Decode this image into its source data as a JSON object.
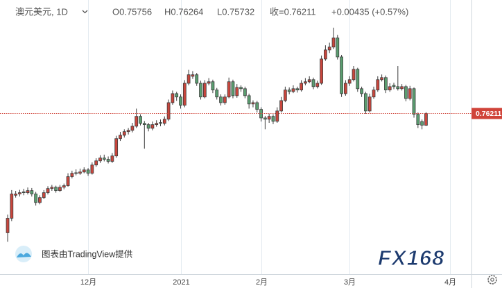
{
  "chart_data": {
    "type": "candlestick",
    "title": "澳元美元, 1D",
    "header_values": [
      "O0.75756",
      "H0.76264",
      "L0.75732",
      "收=0.76211",
      "+0.00435 (+0.57%)"
    ],
    "attribution": "图表由TradingView提供",
    "watermark": "FX168",
    "up_color": "#c9463d",
    "down_color": "#5a9e70",
    "price_line_color": "#d0443a",
    "grid": true,
    "xlim": [
      -1.9,
      115.3
    ],
    "xticks": [
      {
        "value": 20,
        "label": "12月"
      },
      {
        "value": 43,
        "label": "2021"
      },
      {
        "value": 63,
        "label": "2月"
      },
      {
        "value": 85,
        "label": "3月"
      },
      {
        "value": 110,
        "label": "4月"
      }
    ],
    "ylim": [
      0.7,
      0.806
    ],
    "ohlc": [
      [
        0.716,
        0.723,
        0.7125,
        0.7216
      ],
      [
        0.7216,
        0.7325,
        0.7205,
        0.731
      ],
      [
        0.7305,
        0.7322,
        0.7296,
        0.731
      ],
      [
        0.731,
        0.7326,
        0.73,
        0.7315
      ],
      [
        0.7318,
        0.733,
        0.7305,
        0.7315
      ],
      [
        0.7315,
        0.7335,
        0.7308,
        0.7323
      ],
      [
        0.7323,
        0.7333,
        0.73,
        0.731
      ],
      [
        0.731,
        0.7318,
        0.7265,
        0.7277
      ],
      [
        0.7277,
        0.7305,
        0.727,
        0.7296
      ],
      [
        0.7296,
        0.7325,
        0.729,
        0.7315
      ],
      [
        0.7315,
        0.734,
        0.7308,
        0.7331
      ],
      [
        0.7331,
        0.7345,
        0.7322,
        0.7336
      ],
      [
        0.7336,
        0.7342,
        0.7315,
        0.7323
      ],
      [
        0.7323,
        0.7345,
        0.7318,
        0.7336
      ],
      [
        0.7336,
        0.735,
        0.7328,
        0.7342
      ],
      [
        0.7342,
        0.739,
        0.7338,
        0.7377
      ],
      [
        0.7377,
        0.74,
        0.737,
        0.739
      ],
      [
        0.7392,
        0.7405,
        0.7382,
        0.739
      ],
      [
        0.739,
        0.7408,
        0.7384,
        0.7395
      ],
      [
        0.7395,
        0.7413,
        0.739,
        0.7403
      ],
      [
        0.7403,
        0.741,
        0.738,
        0.739
      ],
      [
        0.739,
        0.7432,
        0.7385,
        0.7422
      ],
      [
        0.7422,
        0.7448,
        0.7415,
        0.7438
      ],
      [
        0.7438,
        0.746,
        0.743,
        0.7449
      ],
      [
        0.7449,
        0.7462,
        0.7436,
        0.7444
      ],
      [
        0.7444,
        0.7455,
        0.7428,
        0.7436
      ],
      [
        0.7436,
        0.7468,
        0.743,
        0.7457
      ],
      [
        0.7457,
        0.7535,
        0.745,
        0.7524
      ],
      [
        0.7524,
        0.755,
        0.7515,
        0.7537
      ],
      [
        0.7537,
        0.756,
        0.7528,
        0.7551
      ],
      [
        0.7551,
        0.7565,
        0.754,
        0.7556
      ],
      [
        0.7556,
        0.7585,
        0.7548,
        0.7572
      ],
      [
        0.7572,
        0.764,
        0.7565,
        0.761
      ],
      [
        0.761,
        0.7618,
        0.7575,
        0.7583
      ],
      [
        0.7583,
        0.7592,
        0.7485,
        0.7578
      ],
      [
        0.7578,
        0.7585,
        0.7552,
        0.7564
      ],
      [
        0.7564,
        0.759,
        0.7556,
        0.7578
      ],
      [
        0.7578,
        0.7595,
        0.757,
        0.7583
      ],
      [
        0.7586,
        0.7598,
        0.7572,
        0.7583
      ],
      [
        0.7583,
        0.761,
        0.7575,
        0.7599
      ],
      [
        0.7599,
        0.7675,
        0.7592,
        0.7663
      ],
      [
        0.7663,
        0.771,
        0.7655,
        0.7698
      ],
      [
        0.7698,
        0.7705,
        0.767,
        0.7685
      ],
      [
        0.7685,
        0.7695,
        0.764,
        0.7653
      ],
      [
        0.7653,
        0.775,
        0.7645,
        0.7738
      ],
      [
        0.7738,
        0.779,
        0.773,
        0.7771
      ],
      [
        0.7765,
        0.7785,
        0.7755,
        0.7771
      ],
      [
        0.7771,
        0.7778,
        0.7728,
        0.7738
      ],
      [
        0.7738,
        0.7748,
        0.7675,
        0.7685
      ],
      [
        0.7685,
        0.775,
        0.768,
        0.7738
      ],
      [
        0.7738,
        0.7758,
        0.773,
        0.7744
      ],
      [
        0.7744,
        0.7752,
        0.77,
        0.7712
      ],
      [
        0.7712,
        0.772,
        0.7675,
        0.7685
      ],
      [
        0.7685,
        0.7695,
        0.7652,
        0.7663
      ],
      [
        0.7663,
        0.7695,
        0.7655,
        0.7685
      ],
      [
        0.7685,
        0.776,
        0.768,
        0.7744
      ],
      [
        0.7744,
        0.7752,
        0.768,
        0.769
      ],
      [
        0.769,
        0.7735,
        0.7682,
        0.7722
      ],
      [
        0.7722,
        0.773,
        0.7705,
        0.7717
      ],
      [
        0.7717,
        0.7725,
        0.768,
        0.769
      ],
      [
        0.769,
        0.7698,
        0.764,
        0.7658
      ],
      [
        0.7658,
        0.7672,
        0.7645,
        0.7663
      ],
      [
        0.7663,
        0.767,
        0.7625,
        0.7637
      ],
      [
        0.7637,
        0.7645,
        0.759,
        0.7604
      ],
      [
        0.7604,
        0.7612,
        0.756,
        0.7599
      ],
      [
        0.7599,
        0.762,
        0.7585,
        0.761
      ],
      [
        0.761,
        0.7618,
        0.758,
        0.7591
      ],
      [
        0.7591,
        0.7645,
        0.7585,
        0.7631
      ],
      [
        0.7631,
        0.7685,
        0.7625,
        0.7671
      ],
      [
        0.7671,
        0.7725,
        0.7665,
        0.7712
      ],
      [
        0.7712,
        0.7722,
        0.7695,
        0.7706
      ],
      [
        0.7706,
        0.773,
        0.77,
        0.7717
      ],
      [
        0.7717,
        0.7725,
        0.7702,
        0.7712
      ],
      [
        0.7712,
        0.775,
        0.7706,
        0.7738
      ],
      [
        0.7738,
        0.7758,
        0.773,
        0.7744
      ],
      [
        0.7744,
        0.7765,
        0.7738,
        0.7752
      ],
      [
        0.7752,
        0.776,
        0.7715,
        0.7725
      ],
      [
        0.7725,
        0.7748,
        0.7718,
        0.7738
      ],
      [
        0.7738,
        0.7845,
        0.7732,
        0.7832
      ],
      [
        0.7832,
        0.7885,
        0.7825,
        0.7867
      ],
      [
        0.7867,
        0.7895,
        0.7855,
        0.7878
      ],
      [
        0.7878,
        0.7953,
        0.787,
        0.7913
      ],
      [
        0.7913,
        0.7925,
        0.783,
        0.784
      ],
      [
        0.784,
        0.7848,
        0.7685,
        0.7698
      ],
      [
        0.7698,
        0.775,
        0.769,
        0.7738
      ],
      [
        0.7738,
        0.7765,
        0.7728,
        0.7752
      ],
      [
        0.7752,
        0.7805,
        0.7745,
        0.7792
      ],
      [
        0.7792,
        0.7798,
        0.7705,
        0.7717
      ],
      [
        0.7717,
        0.7725,
        0.7685,
        0.7698
      ],
      [
        0.7698,
        0.7705,
        0.762,
        0.7631
      ],
      [
        0.7631,
        0.7698,
        0.7625,
        0.7685
      ],
      [
        0.7685,
        0.7725,
        0.7678,
        0.7712
      ],
      [
        0.7712,
        0.7765,
        0.7705,
        0.7752
      ],
      [
        0.7752,
        0.7772,
        0.7745,
        0.776
      ],
      [
        0.776,
        0.7768,
        0.77,
        0.7712
      ],
      [
        0.7712,
        0.7738,
        0.7705,
        0.7725
      ],
      [
        0.773,
        0.774,
        0.7715,
        0.7725
      ],
      [
        0.7725,
        0.7805,
        0.771,
        0.7717
      ],
      [
        0.7717,
        0.7735,
        0.771,
        0.7725
      ],
      [
        0.7725,
        0.7732,
        0.7668,
        0.7679
      ],
      [
        0.7679,
        0.7728,
        0.7672,
        0.7717
      ],
      [
        0.7717,
        0.7722,
        0.7605,
        0.7618
      ],
      [
        0.7618,
        0.7625,
        0.7565,
        0.7578
      ],
      [
        0.759,
        0.7598,
        0.756,
        0.7576
      ],
      [
        0.75756,
        0.76264,
        0.75732,
        0.76211
      ]
    ]
  }
}
